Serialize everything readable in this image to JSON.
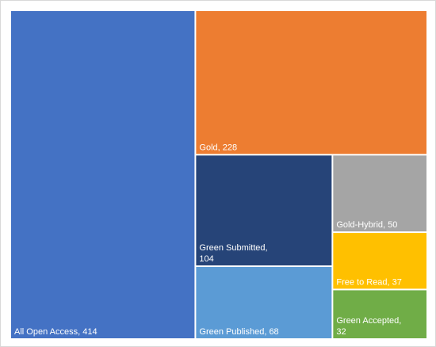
{
  "chart_data": {
    "type": "treemap",
    "title": "",
    "items": [
      {
        "name": "All Open Access",
        "value": 414,
        "label_lines": [
          "All Open Access, 414"
        ],
        "color": "#4472C4"
      },
      {
        "name": "Gold",
        "value": 228,
        "label_lines": [
          "Gold, 228"
        ],
        "color": "#ED7D31"
      },
      {
        "name": "Green Submitted",
        "value": 104,
        "label_lines": [
          "Green Submitted,",
          "104"
        ],
        "color": "#264478"
      },
      {
        "name": "Green Published",
        "value": 68,
        "label_lines": [
          "Green Published, 68"
        ],
        "color": "#5B9BD5"
      },
      {
        "name": "Gold-Hybrid",
        "value": 50,
        "label_lines": [
          "Gold-Hybrid, 50"
        ],
        "color": "#A5A5A5"
      },
      {
        "name": "Free to Read",
        "value": 37,
        "label_lines": [
          "Free to Read, 37"
        ],
        "color": "#FFC000"
      },
      {
        "name": "Green Accepted",
        "value": 32,
        "label_lines": [
          "Green Accepted,",
          "32"
        ],
        "color": "#70AD47"
      }
    ]
  }
}
